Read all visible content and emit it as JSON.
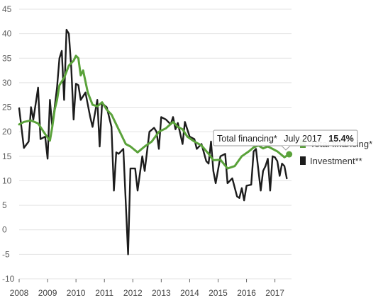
{
  "chart_data": {
    "type": "line",
    "title": "",
    "xlabel": "",
    "ylabel": "",
    "ylim": [
      -10,
      45
    ],
    "xlim": [
      "2008-01",
      "2017-08"
    ],
    "y_ticks": [
      "45",
      "40",
      "35",
      "30",
      "25",
      "20",
      "15",
      "10",
      "5",
      "0",
      "-5",
      "-10"
    ],
    "x_ticks": [
      "2008",
      "2009",
      "2010",
      "2011",
      "2012",
      "2013",
      "2014",
      "2015",
      "2016",
      "2017"
    ],
    "grid": true,
    "legend_position": "right",
    "colors": {
      "total_financing": "#5aa23a",
      "investment": "#1c1c1c"
    },
    "series": [
      {
        "name": "Total financing*",
        "color": "#5aa23a",
        "points": [
          [
            "2008-01",
            21.5
          ],
          [
            "2008-03",
            22.0
          ],
          [
            "2008-06",
            22.3
          ],
          [
            "2008-09",
            21.7
          ],
          [
            "2008-12",
            19.5
          ],
          [
            "2009-02",
            18.2
          ],
          [
            "2009-03",
            21.0
          ],
          [
            "2009-04",
            24.5
          ],
          [
            "2009-05",
            26.5
          ],
          [
            "2009-06",
            29.5
          ],
          [
            "2009-08",
            31.0
          ],
          [
            "2009-10",
            33.5
          ],
          [
            "2009-12",
            34.5
          ],
          [
            "2010-01",
            35.5
          ],
          [
            "2010-02",
            35.0
          ],
          [
            "2010-03",
            31.5
          ],
          [
            "2010-04",
            32.5
          ],
          [
            "2010-06",
            28.0
          ],
          [
            "2010-08",
            25.5
          ],
          [
            "2010-10",
            25.2
          ],
          [
            "2010-12",
            26.0
          ],
          [
            "2011-02",
            24.5
          ],
          [
            "2011-04",
            23.5
          ],
          [
            "2011-06",
            21.5
          ],
          [
            "2011-08",
            19.5
          ],
          [
            "2011-10",
            17.5
          ],
          [
            "2011-12",
            17.0
          ],
          [
            "2012-03",
            15.8
          ],
          [
            "2012-06",
            17.0
          ],
          [
            "2012-09",
            18.0
          ],
          [
            "2012-12",
            20.0
          ],
          [
            "2013-03",
            20.7
          ],
          [
            "2013-06",
            22.0
          ],
          [
            "2013-08",
            21.0
          ],
          [
            "2013-10",
            20.5
          ],
          [
            "2013-12",
            19.0
          ],
          [
            "2014-03",
            18.0
          ],
          [
            "2014-06",
            17.2
          ],
          [
            "2014-09",
            15.5
          ],
          [
            "2014-11",
            14.2
          ],
          [
            "2015-02",
            14.3
          ],
          [
            "2015-05",
            12.5
          ],
          [
            "2015-08",
            13.0
          ],
          [
            "2015-11",
            15.0
          ],
          [
            "2016-02",
            16.0
          ],
          [
            "2016-04",
            16.8
          ],
          [
            "2016-06",
            17.2
          ],
          [
            "2016-08",
            16.6
          ],
          [
            "2016-10",
            17.0
          ],
          [
            "2016-12",
            16.5
          ],
          [
            "2017-02",
            16.0
          ],
          [
            "2017-04",
            15.2
          ],
          [
            "2017-05",
            14.8
          ],
          [
            "2017-07",
            15.4
          ]
        ]
      },
      {
        "name": "Investment**",
        "color": "#1c1c1c",
        "points": [
          [
            "2008-01",
            24.8
          ],
          [
            "2008-03",
            16.7
          ],
          [
            "2008-05",
            18.0
          ],
          [
            "2008-06",
            25.0
          ],
          [
            "2008-07",
            22.5
          ],
          [
            "2008-09",
            29.0
          ],
          [
            "2008-10",
            18.5
          ],
          [
            "2008-12",
            19.0
          ],
          [
            "2009-01",
            14.5
          ],
          [
            "2009-02",
            26.5
          ],
          [
            "2009-03",
            21.0
          ],
          [
            "2009-05",
            29.0
          ],
          [
            "2009-06",
            35.0
          ],
          [
            "2009-07",
            36.5
          ],
          [
            "2009-08",
            26.5
          ],
          [
            "2009-09",
            40.8
          ],
          [
            "2009-10",
            40.0
          ],
          [
            "2009-11",
            33.0
          ],
          [
            "2009-12",
            22.5
          ],
          [
            "2010-01",
            29.8
          ],
          [
            "2010-02",
            29.5
          ],
          [
            "2010-03",
            26.5
          ],
          [
            "2010-05",
            28.0
          ],
          [
            "2010-07",
            23.0
          ],
          [
            "2010-08",
            21.0
          ],
          [
            "2010-10",
            26.5
          ],
          [
            "2010-11",
            17.0
          ],
          [
            "2010-12",
            25.8
          ],
          [
            "2011-02",
            25.0
          ],
          [
            "2011-04",
            21.0
          ],
          [
            "2011-05",
            8.0
          ],
          [
            "2011-06",
            15.8
          ],
          [
            "2011-07",
            15.5
          ],
          [
            "2011-09",
            16.5
          ],
          [
            "2011-11",
            -5.0
          ],
          [
            "2011-12",
            12.5
          ],
          [
            "2012-02",
            12.5
          ],
          [
            "2012-03",
            8.0
          ],
          [
            "2012-05",
            15.0
          ],
          [
            "2012-06",
            12.0
          ],
          [
            "2012-08",
            20.0
          ],
          [
            "2012-10",
            20.8
          ],
          [
            "2012-11",
            20.0
          ],
          [
            "2012-12",
            16.5
          ],
          [
            "2013-01",
            23.0
          ],
          [
            "2013-03",
            22.5
          ],
          [
            "2013-05",
            21.5
          ],
          [
            "2013-06",
            23.0
          ],
          [
            "2013-07",
            20.5
          ],
          [
            "2013-08",
            21.8
          ],
          [
            "2013-10",
            17.5
          ],
          [
            "2013-11",
            22.0
          ],
          [
            "2014-01",
            19.0
          ],
          [
            "2014-03",
            18.5
          ],
          [
            "2014-04",
            16.5
          ],
          [
            "2014-06",
            17.5
          ],
          [
            "2014-08",
            14.0
          ],
          [
            "2014-09",
            13.5
          ],
          [
            "2014-10",
            18.0
          ],
          [
            "2014-11",
            12.0
          ],
          [
            "2014-12",
            9.5
          ],
          [
            "2015-02",
            15.0
          ],
          [
            "2015-04",
            15.5
          ],
          [
            "2015-05",
            9.5
          ],
          [
            "2015-07",
            10.5
          ],
          [
            "2015-09",
            6.8
          ],
          [
            "2015-10",
            6.5
          ],
          [
            "2015-11",
            8.5
          ],
          [
            "2015-12",
            6.0
          ],
          [
            "2016-01",
            9.0
          ],
          [
            "2016-03",
            9.2
          ],
          [
            "2016-04",
            16.0
          ],
          [
            "2016-05",
            16.5
          ],
          [
            "2016-07",
            8.0
          ],
          [
            "2016-08",
            12.0
          ],
          [
            "2016-09",
            13.0
          ],
          [
            "2016-10",
            14.5
          ],
          [
            "2016-11",
            8.0
          ],
          [
            "2016-12",
            15.0
          ],
          [
            "2017-01",
            14.8
          ],
          [
            "2017-02",
            14.0
          ],
          [
            "2017-03",
            11.0
          ],
          [
            "2017-04",
            13.5
          ],
          [
            "2017-05",
            13.0
          ],
          [
            "2017-06",
            10.5
          ]
        ]
      }
    ],
    "tooltip": {
      "series_name": "Total financing*",
      "date": "July 2017",
      "value": "15.4%",
      "x": "2017-07",
      "y": 15.4
    }
  }
}
